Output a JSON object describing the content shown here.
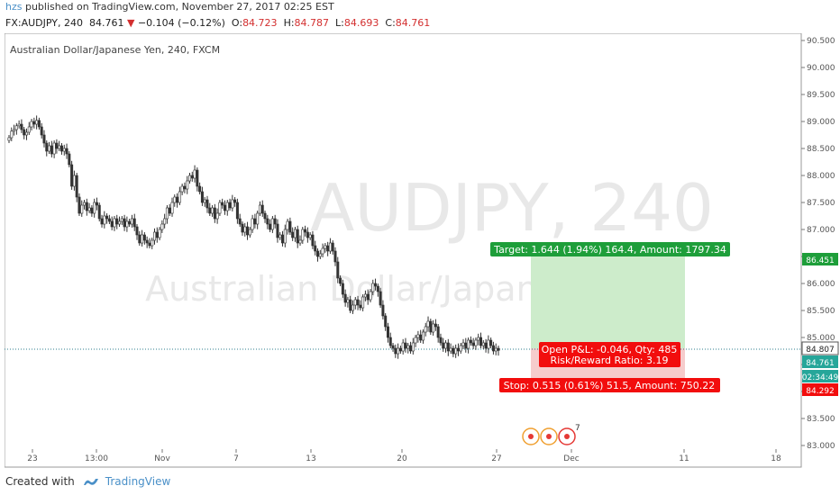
{
  "header": {
    "user": "hzs",
    "published": " published on TradingView.com, November 27, 2017 02:25 EST",
    "symbol": "FX:AUDJPY, 240",
    "last": "84.761",
    "change": "−0.104 (−0.12%)",
    "o_label": "O:",
    "o": "84.723",
    "h_label": "H:",
    "h": "84.787",
    "l_label": "L:",
    "l": "84.693",
    "c_label": "C:",
    "c": "84.761"
  },
  "chart_title": "Australian Dollar/Japanese Yen, 240, FXCM",
  "watermark": {
    "line1": "AUDJPY, 240",
    "line2": "Australian Dollar/Japanese Yen"
  },
  "colors": {
    "up": "#26a69a",
    "down": "#ef5350",
    "candle": "#333333",
    "target": "#1e9e3a",
    "stop": "#f20d0d",
    "profit_zone": "#cdeccb",
    "loss_zone": "#f6cccc"
  },
  "position": {
    "target_label": "Target: 1.644 (1.94%) 164.4, Amount: 1797.34",
    "pnl_label": "Open P&L: -0.046, Qty: 485",
    "rr_label": "Risk/Reward Ratio: 3.19",
    "stop_label": "Stop: 0.515 (0.61%) 51.5, Amount: 750.22"
  },
  "footer": {
    "created": "Created with",
    "brand": "TradingView"
  },
  "chart_data": {
    "type": "candlestick",
    "y_ticks": [
      "90.500",
      "90.000",
      "89.500",
      "89.000",
      "88.500",
      "88.000",
      "87.500",
      "87.000",
      "86.500",
      "86.000",
      "85.500",
      "85.000",
      "84.500",
      "84.000",
      "83.500",
      "83.000"
    ],
    "x_ticks": [
      "23",
      "13:00",
      "Nov",
      "7",
      "13",
      "20",
      "27",
      "Dec",
      "11",
      "18"
    ],
    "price_labels": {
      "target": "86.451",
      "current": "84.807",
      "last": "84.761",
      "countdown": "02:34:49",
      "stop": "84.292"
    },
    "ylim": [
      83.0,
      90.5
    ],
    "close_series": [
      88.7,
      88.82,
      88.85,
      88.92,
      88.95,
      88.85,
      88.75,
      88.8,
      88.9,
      89.0,
      88.95,
      89.02,
      88.9,
      88.75,
      88.6,
      88.45,
      88.55,
      88.4,
      88.6,
      88.5,
      88.55,
      88.45,
      88.5,
      88.4,
      88.2,
      87.8,
      88.0,
      87.6,
      87.3,
      87.45,
      87.5,
      87.35,
      87.4,
      87.3,
      87.5,
      87.45,
      87.2,
      87.1,
      87.25,
      87.2,
      87.15,
      87.05,
      87.2,
      87.1,
      87.15,
      87.2,
      87.05,
      87.15,
      87.1,
      87.2,
      87.05,
      86.9,
      86.75,
      86.9,
      86.8,
      86.75,
      86.7,
      86.8,
      86.95,
      86.85,
      87.0,
      87.1,
      87.2,
      87.4,
      87.3,
      87.5,
      87.6,
      87.5,
      87.7,
      87.8,
      87.75,
      87.9,
      88.0,
      87.95,
      88.1,
      87.8,
      87.7,
      87.5,
      87.55,
      87.4,
      87.3,
      87.4,
      87.2,
      87.3,
      87.5,
      87.45,
      87.35,
      87.5,
      87.4,
      87.55,
      87.5,
      87.2,
      87.1,
      86.95,
      87.05,
      86.9,
      87.0,
      87.2,
      87.1,
      87.3,
      87.45,
      87.3,
      87.2,
      87.1,
      87.0,
      87.2,
      87.1,
      86.85,
      86.9,
      86.75,
      87.0,
      87.15,
      86.95,
      86.85,
      87.0,
      86.75,
      86.8,
      87.0,
      86.95,
      86.85,
      86.9,
      86.7,
      86.6,
      86.5,
      86.55,
      86.65,
      86.7,
      86.6,
      86.75,
      86.6,
      86.4,
      86.1,
      86.0,
      85.8,
      85.65,
      85.7,
      85.5,
      85.6,
      85.7,
      85.6,
      85.55,
      85.75,
      85.8,
      85.7,
      85.85,
      86.0,
      85.95,
      85.85,
      85.6,
      85.4,
      85.2,
      85.0,
      84.85,
      84.8,
      84.7,
      84.8,
      84.75,
      84.9,
      84.8,
      84.85,
      84.75,
      84.9,
      85.0,
      85.05,
      84.95,
      85.1,
      85.2,
      85.3,
      85.1,
      85.25,
      85.2,
      85.0,
      84.9,
      84.8,
      84.9,
      84.75,
      84.8,
      84.7,
      84.8,
      84.75,
      84.85,
      84.9,
      84.8,
      84.95,
      84.9,
      84.85,
      84.95,
      85.0,
      84.85,
      84.9,
      84.8,
      84.95,
      84.85,
      84.75,
      84.8,
      84.76
    ]
  },
  "events": {
    "badge": "7"
  }
}
